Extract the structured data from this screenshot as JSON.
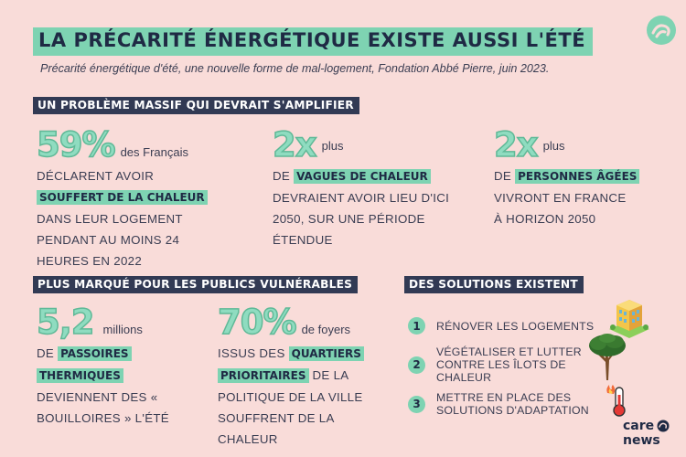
{
  "header": {
    "title": "LA PRÉCARITÉ ÉNERGÉTIQUE EXISTE AUSSI L'ÉTÉ",
    "subtitle": "Précarité énergétique d'été, une nouvelle forme de mal-logement, Fondation Abbé Pierre, juin 2023."
  },
  "section1": {
    "heading": "UN PROBLÈME MASSIF QUI DEVRAIT S'AMPLIFIER",
    "stats": [
      {
        "big": "59%",
        "suffix": "des Français",
        "lines": [
          "DÉCLARENT AVOIR",
          "SOUFFERT DE LA CHALEUR",
          "DANS LEUR LOGEMENT",
          "PENDANT AU MOINS 24",
          "HEURES EN 2022"
        ]
      },
      {
        "big": "2x",
        "suffix": "plus",
        "pre": "DE",
        "highlight": "VAGUES DE CHALEUR",
        "lines": [
          "DEVRAIENT AVOIR LIEU D'ICI",
          "2050, SUR UNE PÉRIODE",
          "ÉTENDUE"
        ]
      },
      {
        "big": "2x",
        "suffix": "plus",
        "pre": "DE",
        "highlight": "PERSONNES ÂGÉES",
        "lines": [
          "VIVRONT EN FRANCE",
          "À HORIZON 2050"
        ]
      }
    ]
  },
  "section2": {
    "heading": "PLUS MARQUÉ POUR LES PUBLICS VULNÉRABLES",
    "stats": [
      {
        "big": "5,2",
        "suffix": "millions",
        "pre": "DE",
        "highlight1": "PASSOIRES",
        "highlight2": "THERMIQUES",
        "lines": [
          "DEVIENNENT DES «",
          "BOUILLOIRES » L'ÉTÉ"
        ]
      },
      {
        "big": "70%",
        "suffix": "de foyers",
        "pre": "ISSUS DES",
        "highlight1": "QUARTIERS",
        "highlight2": "PRIORITAIRES",
        "post": "DE LA",
        "lines": [
          "POLITIQUE DE LA VILLE",
          "SOUFFRENT DE LA",
          "CHALEUR"
        ]
      }
    ]
  },
  "section3": {
    "heading": "DES SOLUTIONS EXISTENT",
    "items": [
      {
        "num": "1",
        "text": "RÉNOVER LES LOGEMENTS",
        "icon": "building-icon"
      },
      {
        "num": "2",
        "line1": "VÉGÉTALISER ET LUTTER",
        "line2": "CONTRE LES ÎLOTS DE",
        "line3": "CHALEUR",
        "icon": "tree-icon"
      },
      {
        "num": "3",
        "line1": "METTRE EN PLACE DES",
        "line2": "SOLUTIONS D'ADAPTATION",
        "icon": "thermometer-fire-icon"
      }
    ]
  },
  "brand": {
    "line1": "care",
    "line2": "news"
  },
  "colors": {
    "accent": "#7ed3b2",
    "dark": "#323a54",
    "background": "#f9dcd9"
  }
}
